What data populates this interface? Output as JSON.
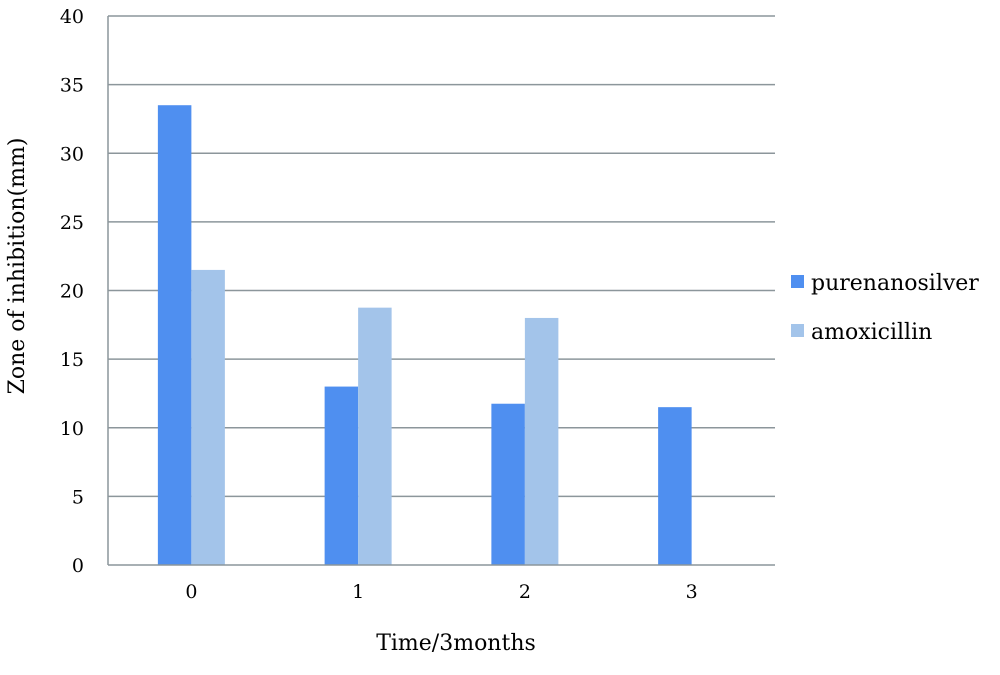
{
  "chart_data": {
    "type": "bar",
    "title": "",
    "xlabel": "Time/3months",
    "ylabel": "Zone of inhibition(mm)",
    "categories": [
      "0",
      "1",
      "2",
      "3"
    ],
    "ylim": [
      0,
      40
    ],
    "yticks": [
      0,
      5,
      10,
      15,
      20,
      25,
      30,
      35,
      40
    ],
    "grid": true,
    "legend_position": "right",
    "series": [
      {
        "name": "purenanosilver",
        "color": "#4f8ff0",
        "values": [
          33.5,
          13.0,
          11.75,
          11.5
        ]
      },
      {
        "name": "amoxicillin",
        "color": "#a3c4ea",
        "values": [
          21.5,
          18.75,
          18.0,
          0
        ]
      }
    ],
    "gridline_color": "#8c969b",
    "axis_color": "#8c969b"
  }
}
